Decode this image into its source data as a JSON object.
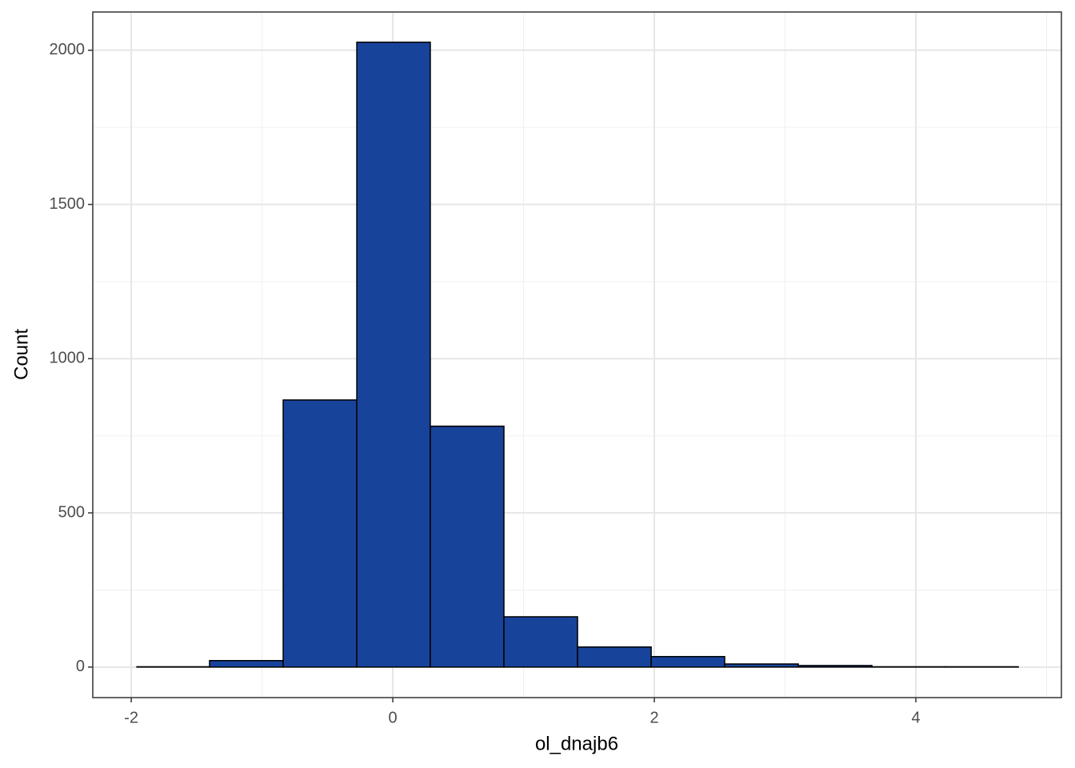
{
  "chart_data": {
    "type": "histogram",
    "x_label": "ol_dnajb6",
    "y_label": "Count",
    "bins": [
      -1.957,
      -1.401,
      -0.838,
      -0.275,
      0.287,
      0.85,
      1.413,
      1.976,
      2.538,
      3.101,
      3.664,
      4.226,
      4.783
    ],
    "counts": [
      1,
      21,
      866,
      2026,
      781,
      163,
      65,
      34,
      10,
      5,
      1,
      1
    ],
    "color": "#17439b",
    "edge_color": "#000000",
    "xlim": [
      -2.294,
      5.113
    ],
    "xticks": [
      -2,
      0,
      2,
      4
    ],
    "x_minor_ticks": [
      -1,
      1,
      3,
      5
    ],
    "ylim": [
      -99,
      2124
    ],
    "yticks": [
      0,
      500,
      1000,
      1500,
      2000
    ],
    "y_minor_ticks": [
      250,
      750,
      1250,
      1750
    ],
    "grid": true
  }
}
